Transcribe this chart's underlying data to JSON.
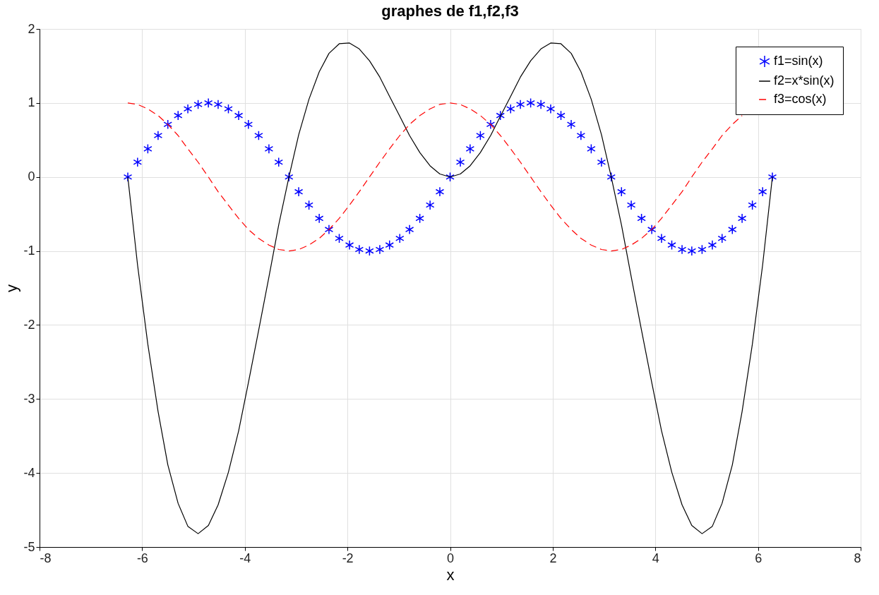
{
  "chart_data": {
    "type": "line",
    "title": "graphes de f1,f2,f3",
    "xlabel": "x",
    "ylabel": "y",
    "x": [
      -6.28,
      -6.09,
      -5.89,
      -5.69,
      -5.5,
      -5.3,
      -5.11,
      -4.91,
      -4.71,
      -4.52,
      -4.32,
      -4.12,
      -3.93,
      -3.73,
      -3.53,
      -3.34,
      -3.14,
      -2.95,
      -2.75,
      -2.55,
      -2.36,
      -2.16,
      -1.96,
      -1.77,
      -1.57,
      -1.37,
      -1.18,
      -0.98,
      -0.79,
      -0.59,
      -0.39,
      -0.2,
      0,
      0.2,
      0.39,
      0.59,
      0.79,
      0.98,
      1.18,
      1.37,
      1.57,
      1.77,
      1.96,
      2.16,
      2.36,
      2.55,
      2.75,
      2.95,
      3.14,
      3.34,
      3.53,
      3.73,
      3.93,
      4.12,
      4.32,
      4.52,
      4.71,
      4.91,
      5.11,
      5.3,
      5.5,
      5.69,
      5.89,
      6.09,
      6.28
    ],
    "series": [
      {
        "name": "f1=sin(x)",
        "type": "scatter",
        "marker": "cross",
        "color": "#0000ff",
        "values": [
          0,
          0.2,
          0.38,
          0.56,
          0.71,
          0.83,
          0.92,
          0.98,
          1,
          0.98,
          0.92,
          0.83,
          0.71,
          0.56,
          0.38,
          0.2,
          0,
          -0.2,
          -0.38,
          -0.56,
          -0.71,
          -0.83,
          -0.92,
          -0.98,
          -1,
          -0.98,
          -0.92,
          -0.83,
          -0.71,
          -0.56,
          -0.38,
          -0.2,
          0,
          0.2,
          0.38,
          0.56,
          0.71,
          0.83,
          0.92,
          0.98,
          1,
          0.98,
          0.92,
          0.83,
          0.71,
          0.56,
          0.38,
          0.2,
          0,
          -0.2,
          -0.38,
          -0.56,
          -0.71,
          -0.83,
          -0.92,
          -0.98,
          -1,
          -0.98,
          -0.92,
          -0.83,
          -0.71,
          -0.56,
          -0.38,
          -0.2,
          0
        ]
      },
      {
        "name": "f2=x*sin(x)",
        "line_style": "solid",
        "color": "#000000",
        "values": [
          0,
          -1.19,
          -2.26,
          -3.17,
          -3.89,
          -4.41,
          -4.72,
          -4.82,
          -4.71,
          -4.43,
          -3.99,
          -3.43,
          -2.78,
          -2.07,
          -1.35,
          -0.65,
          0,
          0.57,
          1.05,
          1.42,
          1.67,
          1.8,
          1.81,
          1.73,
          1.57,
          1.35,
          1.09,
          0.82,
          0.56,
          0.33,
          0.15,
          0.04,
          0,
          0.04,
          0.15,
          0.33,
          0.56,
          0.82,
          1.09,
          1.35,
          1.57,
          1.73,
          1.81,
          1.8,
          1.67,
          1.42,
          1.05,
          0.57,
          0,
          -0.65,
          -1.35,
          -2.07,
          -2.78,
          -3.43,
          -3.99,
          -4.43,
          -4.71,
          -4.82,
          -4.72,
          -4.41,
          -3.89,
          -3.17,
          -2.26,
          -1.19,
          0
        ]
      },
      {
        "name": "f3=cos(x)",
        "line_style": "dashed",
        "color": "#ff0000",
        "values": [
          1,
          0.98,
          0.92,
          0.83,
          0.71,
          0.56,
          0.38,
          0.2,
          0,
          -0.2,
          -0.38,
          -0.56,
          -0.71,
          -0.83,
          -0.92,
          -0.98,
          -1,
          -0.98,
          -0.92,
          -0.83,
          -0.71,
          -0.56,
          -0.38,
          -0.2,
          0,
          0.2,
          0.38,
          0.56,
          0.71,
          0.83,
          0.92,
          0.98,
          1,
          0.98,
          0.92,
          0.83,
          0.71,
          0.56,
          0.38,
          0.2,
          0,
          -0.2,
          -0.38,
          -0.56,
          -0.71,
          -0.83,
          -0.92,
          -0.98,
          -1,
          -0.98,
          -0.92,
          -0.83,
          -0.71,
          -0.56,
          -0.38,
          -0.2,
          0,
          0.2,
          0.38,
          0.56,
          0.71,
          0.83,
          null,
          null,
          null
        ]
      }
    ],
    "xlim": [
      -8,
      8
    ],
    "xticks": [
      -8,
      -6,
      -4,
      -2,
      0,
      2,
      4,
      6,
      8
    ],
    "ylim": [
      -5,
      2
    ],
    "yticks": [
      -5,
      -4,
      -3,
      -2,
      -1,
      0,
      1,
      2
    ],
    "grid": true,
    "legend": "top right"
  }
}
